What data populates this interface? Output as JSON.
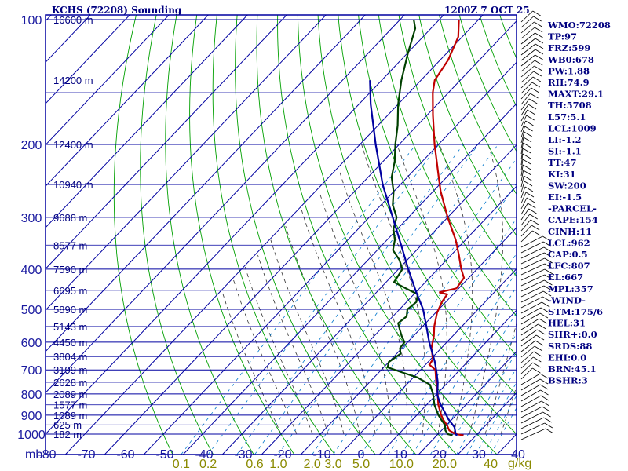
{
  "chart_data": {
    "type": "skew-t",
    "title": "KCHS (72208) Sounding",
    "time_label": "1200Z  7 OCT 25",
    "pressure_unit_label": "mb",
    "mixing_ratio_unit_label": "g/kg",
    "pressure_range_mb": [
      100,
      1000
    ],
    "temperature_range_c": [
      -80,
      40
    ],
    "pressure_ticks": [
      100,
      200,
      300,
      400,
      500,
      600,
      700,
      800,
      900,
      1000
    ],
    "temperature_ticks": [
      -80,
      -70,
      -60,
      -50,
      -40,
      -30,
      -20,
      -10,
      0,
      10,
      20,
      30,
      40
    ],
    "mixing_ratio_labels": [
      {
        "text": "0.1",
        "w": 0.1
      },
      {
        "text": "0.2",
        "w": 0.2
      },
      {
        "text": "0.6",
        "w": 0.6
      },
      {
        "text": "1.0",
        "w": 1.0
      },
      {
        "text": "2.0",
        "w": 2.0
      },
      {
        "text": "3.0",
        "w": 3.0
      },
      {
        "text": "5.0",
        "w": 5.0
      },
      {
        "text": "10.0",
        "w": 10.0
      },
      {
        "text": "20.0",
        "w": 20.0
      },
      {
        "text": "40",
        "w": 40.0
      }
    ],
    "height_labels": [
      {
        "text": "16600 m",
        "p": 100
      },
      {
        "text": "14200 m",
        "p": 140
      },
      {
        "text": "12400 m",
        "p": 200
      },
      {
        "text": "10940 m",
        "p": 250
      },
      {
        "text": "9688 m",
        "p": 300
      },
      {
        "text": "8577 m",
        "p": 350
      },
      {
        "text": "7590 m",
        "p": 400
      },
      {
        "text": "6695 m",
        "p": 450
      },
      {
        "text": "5890 m",
        "p": 500
      },
      {
        "text": "5143 m",
        "p": 550
      },
      {
        "text": "4450 m",
        "p": 600
      },
      {
        "text": "3804 m",
        "p": 650
      },
      {
        "text": "3199 m",
        "p": 700
      },
      {
        "text": "2628 m",
        "p": 750
      },
      {
        "text": "2089 m",
        "p": 800
      },
      {
        "text": "1577 m",
        "p": 850
      },
      {
        "text": "1089 m",
        "p": 900
      },
      {
        "text": "625 m",
        "p": 950
      },
      {
        "text": "182 m",
        "p": 1000
      }
    ],
    "series": [
      {
        "name": "Temperature",
        "color": "#c00000",
        "points": [
          [
            1007,
            26.8
          ],
          [
            1000,
            24.5
          ],
          [
            980,
            22.0
          ],
          [
            950,
            20.0
          ],
          [
            925,
            18.0
          ],
          [
            900,
            16.2
          ],
          [
            850,
            13.0
          ],
          [
            800,
            10.2
          ],
          [
            750,
            7.0
          ],
          [
            700,
            3.8
          ],
          [
            680,
            1.0
          ],
          [
            660,
            0.6
          ],
          [
            620,
            -2.5
          ],
          [
            580,
            -4.8
          ],
          [
            550,
            -7.0
          ],
          [
            510,
            -9.6
          ],
          [
            480,
            -11.0
          ],
          [
            460,
            -11.5
          ],
          [
            455,
            -14.0
          ],
          [
            445,
            -10.6
          ],
          [
            420,
            -11.2
          ],
          [
            400,
            -14.0
          ],
          [
            370,
            -18.0
          ],
          [
            340,
            -22.5
          ],
          [
            300,
            -30.0
          ],
          [
            260,
            -38.0
          ],
          [
            240,
            -42.0
          ],
          [
            200,
            -51.0
          ],
          [
            170,
            -58.5
          ],
          [
            150,
            -64.0
          ],
          [
            140,
            -66.5
          ],
          [
            125,
            -68.0
          ],
          [
            110,
            -71.0
          ],
          [
            100,
            -75.0
          ]
        ]
      },
      {
        "name": "Dewpoint",
        "color": "#004000",
        "points": [
          [
            1007,
            24.0
          ],
          [
            1000,
            22.5
          ],
          [
            980,
            21.0
          ],
          [
            950,
            19.5
          ],
          [
            925,
            17.5
          ],
          [
            900,
            15.5
          ],
          [
            850,
            12.0
          ],
          [
            800,
            9.0
          ],
          [
            760,
            6.0
          ],
          [
            730,
            1.0
          ],
          [
            710,
            -4.0
          ],
          [
            690,
            -9.0
          ],
          [
            670,
            -10.0
          ],
          [
            640,
            -9.0
          ],
          [
            620,
            -10.5
          ],
          [
            600,
            -10.8
          ],
          [
            580,
            -13.0
          ],
          [
            560,
            -15.0
          ],
          [
            540,
            -17.0
          ],
          [
            520,
            -16.5
          ],
          [
            500,
            -18.0
          ],
          [
            480,
            -17.5
          ],
          [
            460,
            -19.0
          ],
          [
            450,
            -22.0
          ],
          [
            430,
            -28.0
          ],
          [
            400,
            -29.0
          ],
          [
            380,
            -32.0
          ],
          [
            360,
            -36.0
          ],
          [
            340,
            -38.0
          ],
          [
            320,
            -41.0
          ],
          [
            300,
            -43.0
          ],
          [
            280,
            -47.0
          ],
          [
            260,
            -50.0
          ],
          [
            240,
            -54.0
          ],
          [
            220,
            -57.0
          ],
          [
            200,
            -61.0
          ],
          [
            180,
            -65.0
          ],
          [
            160,
            -70.0
          ],
          [
            140,
            -75.0
          ],
          [
            120,
            -80.0
          ],
          [
            105,
            -84.0
          ],
          [
            100,
            -86.5
          ]
        ]
      },
      {
        "name": "Parcel",
        "color": "#0000a0",
        "points": [
          [
            1007,
            25.2
          ],
          [
            1000,
            24.5
          ],
          [
            962,
            22.5
          ],
          [
            920,
            19.0
          ],
          [
            880,
            16.0
          ],
          [
            850,
            13.6
          ],
          [
            807,
            10.5
          ],
          [
            750,
            7.4
          ],
          [
            700,
            4.0
          ],
          [
            667,
            1.5
          ],
          [
            600,
            -4.5
          ],
          [
            550,
            -9.0
          ],
          [
            500,
            -14.0
          ],
          [
            450,
            -20.5
          ],
          [
            400,
            -27.5
          ],
          [
            357,
            -34.0
          ],
          [
            300,
            -44.0
          ],
          [
            250,
            -54.5
          ],
          [
            200,
            -66.0
          ],
          [
            160,
            -77.0
          ],
          [
            140,
            -83.0
          ]
        ]
      }
    ]
  },
  "parameters": [
    "WMO:72208",
    "TP:97",
    "FRZ:599",
    "WB0:678",
    "PW:1.88",
    "RH:74.9",
    "MAXT:29.1",
    "TH:5708",
    "L57:5.1",
    "LCL:1009",
    "LI:-1.2",
    "SI:-1.1",
    "TT:47",
    "KI:31",
    "SW:200",
    "EI:-1.5",
    "-PARCEL-",
    "CAPE:154",
    "CINH:11",
    "LCL:962",
    "CAP:0.5",
    "LFC:807",
    "EL:667",
    "MPL:357",
    "-WIND-",
    "STM:175/6",
    "HEL:31",
    "SHR+:0.0",
    "SRDS:88",
    "EHI:0.0",
    "BRN:45.1",
    "BSHR:3"
  ],
  "colors": {
    "frame": "#0000a0",
    "dry_adiabat": "#00a000",
    "moist_adiabat": "#333333",
    "mixing_ratio": "#0077cc",
    "title": "#000080"
  }
}
